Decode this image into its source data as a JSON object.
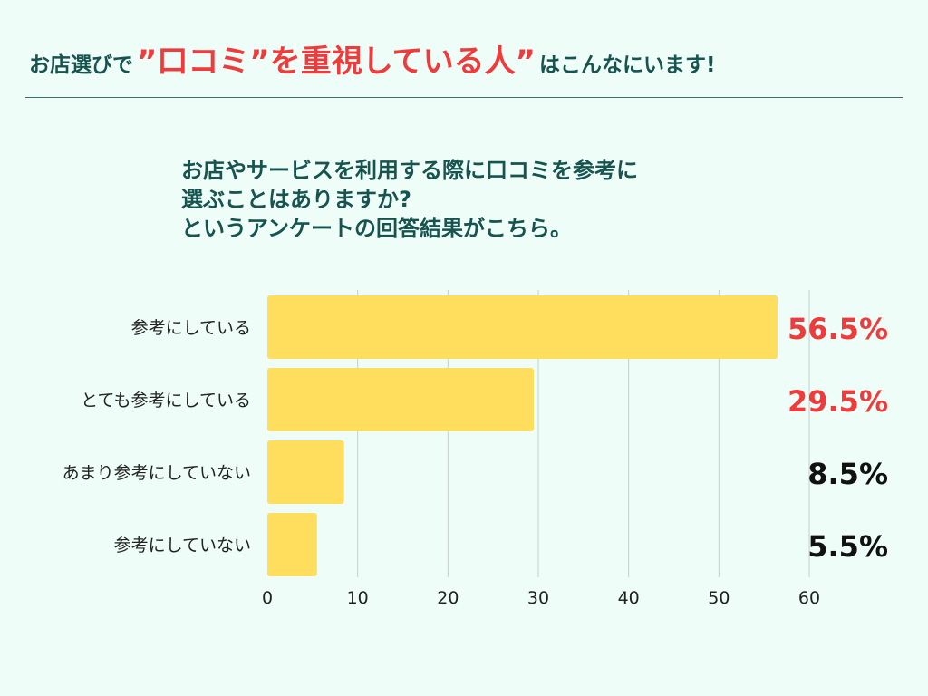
{
  "header": {
    "title_pre": "お店選びで",
    "title_emphasis": "”口コミ”を重視している人”",
    "title_post": "はこんなにいます!"
  },
  "question": {
    "lines": [
      "お店やサービスを利用する際に口コミを参考に",
      "選ぶことはありますか?",
      "というアンケートの回答結果がこちら。"
    ]
  },
  "colors": {
    "bar": "#fede5c",
    "highlight_value": "#ee3b3b",
    "normal_value": "#111111",
    "heading": "#17544f",
    "grid": "#c5cfca",
    "background": "#effdf8"
  },
  "chart_data": {
    "type": "bar",
    "orientation": "horizontal",
    "categories": [
      "参考にしている",
      "とても参考にしている",
      "あまり参考にしていない",
      "参考にしていない"
    ],
    "values": [
      56.5,
      29.5,
      8.5,
      5.5
    ],
    "value_labels": [
      "56.5%",
      "29.5%",
      "8.5%",
      "5.5%"
    ],
    "highlighted": [
      true,
      true,
      false,
      false
    ],
    "xlim": [
      0,
      60
    ],
    "xticks": [
      "0",
      "10",
      "20",
      "30",
      "40",
      "50",
      "60"
    ],
    "grid": true,
    "title": "",
    "xlabel": "",
    "ylabel": ""
  }
}
